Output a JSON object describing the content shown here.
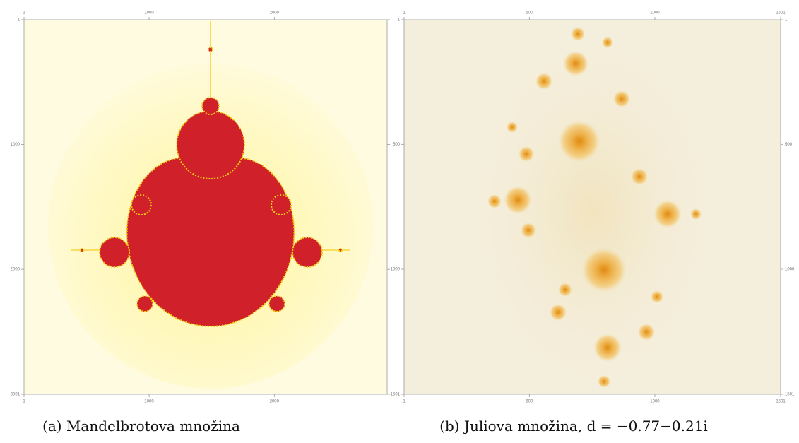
{
  "figures": [
    {
      "caption": "(a) Mandelbrotova množina",
      "xlim": [
        1,
        2901
      ],
      "ylim": [
        1,
        3001
      ],
      "xticks": [
        1,
        1000,
        2000
      ],
      "yticks": [
        1,
        1000,
        2000,
        3001
      ]
    },
    {
      "caption": "(b) Juliova množina, d = −0.77−0.21i",
      "xlim": [
        1,
        1501
      ],
      "ylim": [
        1,
        1501
      ],
      "xticks": [
        1,
        500,
        1000,
        1501
      ],
      "yticks": [
        1,
        500,
        1000,
        1501
      ]
    }
  ]
}
